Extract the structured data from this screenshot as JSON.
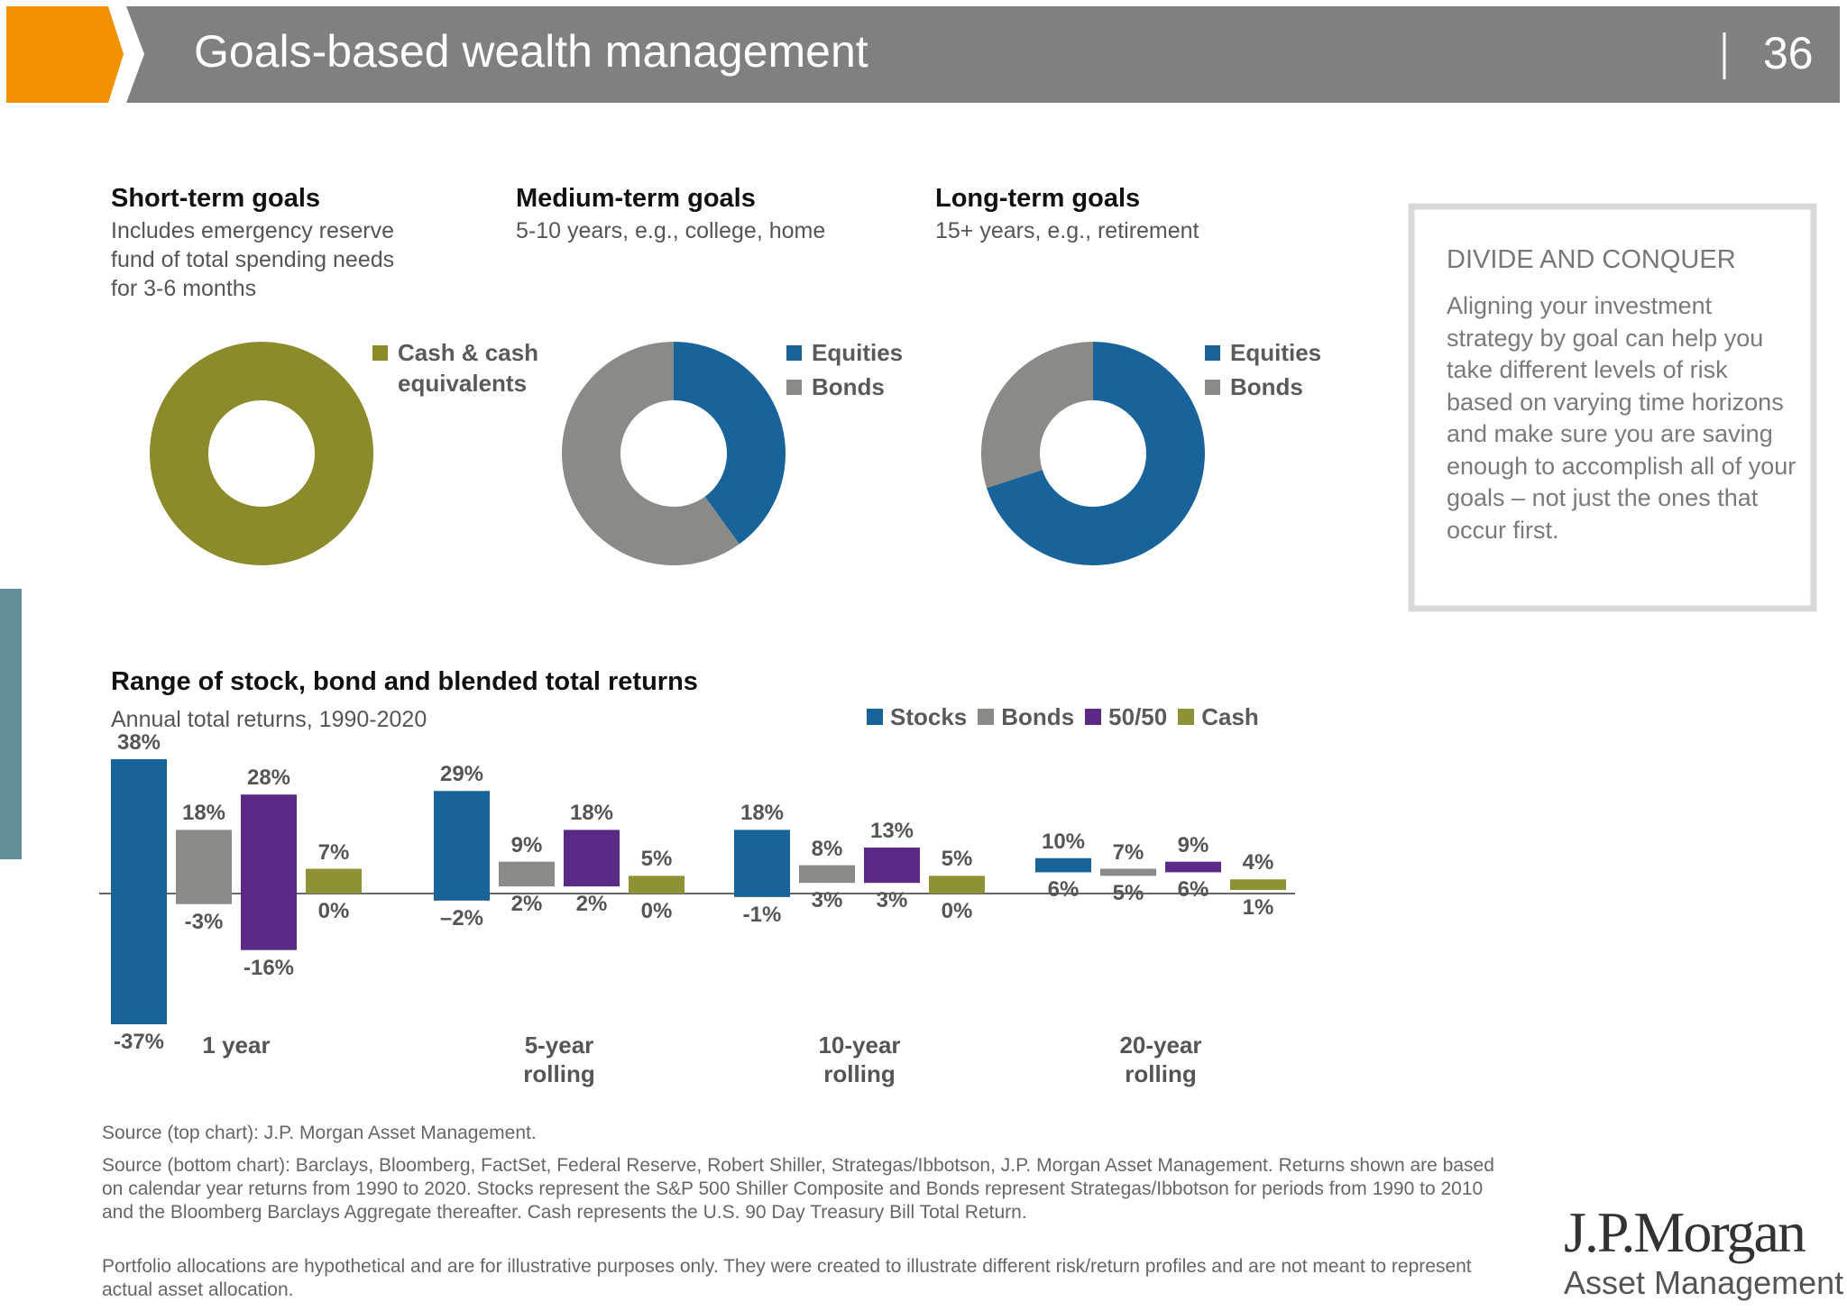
{
  "header": {
    "title": "Goals-based wealth management",
    "page_number": "36"
  },
  "chart_data": [
    {
      "type": "pie",
      "title": "Short-term goals",
      "subtitle": "Includes emergency reserve fund of total spending needs for 3-6 months",
      "categories": [
        "Cash & cash equivalents"
      ],
      "values": [
        100
      ],
      "colors": [
        "#8b8b2c"
      ]
    },
    {
      "type": "pie",
      "title": "Medium-term goals",
      "subtitle": "5-10 years, e.g., college, home",
      "categories": [
        "Equities",
        "Bonds"
      ],
      "values": [
        40,
        60
      ],
      "colors": [
        "#17639a",
        "#8a8a87"
      ]
    },
    {
      "type": "pie",
      "title": "Long-term goals",
      "subtitle": "15+ years, e.g., retirement",
      "categories": [
        "Equities",
        "Bonds"
      ],
      "values": [
        70,
        30
      ],
      "colors": [
        "#17639a",
        "#8a8a87"
      ]
    },
    {
      "type": "range-bar",
      "title": "Range of stock, bond and blended total returns",
      "subtitle": "Annual total returns, 1990-2020",
      "categories": [
        "1 year",
        "5-year rolling",
        "10-year rolling",
        "20-year rolling"
      ],
      "series": [
        {
          "name": "Stocks",
          "color": "#17639a",
          "values": [
            38,
            29,
            18,
            10
          ],
          "value_labels": [
            "38%",
            "29%",
            "18%",
            "10%"
          ],
          "low_values": [
            -37,
            -2,
            -1,
            6
          ],
          "low_value_labels": [
            "-37%",
            "–2%",
            "-1%",
            "6%"
          ]
        },
        {
          "name": "Bonds",
          "color": "#8a8a87",
          "values": [
            18,
            9,
            8,
            7
          ],
          "value_labels": [
            "18%",
            "9%",
            "8%",
            "7%"
          ],
          "low_values": [
            -3,
            2,
            3,
            5
          ],
          "low_value_labels": [
            "-3%",
            "2%",
            "3%",
            "5%"
          ]
        },
        {
          "name": "50/50",
          "color": "#5b2a86",
          "values": [
            28,
            18,
            13,
            9
          ],
          "value_labels": [
            "28%",
            "18%",
            "13%",
            "9%"
          ],
          "low_values": [
            -16,
            2,
            3,
            6
          ],
          "low_value_labels": [
            "-16%",
            "2%",
            "3%",
            "6%"
          ]
        },
        {
          "name": "Cash",
          "color": "#8d9234",
          "values": [
            7,
            5,
            5,
            4
          ],
          "value_labels": [
            "7%",
            "5%",
            "5%",
            "4%"
          ],
          "low_values": [
            0,
            0,
            0,
            1
          ],
          "low_value_labels": [
            "0%",
            "0%",
            "0%",
            "1%"
          ]
        }
      ]
    }
  ],
  "sidebar": {
    "title": "DIVIDE AND CONQUER",
    "text": "Aligning your investment strategy by goal can help you take different levels of risk based on varying time horizons and make sure you are saving enough to accomplish all of your goals – not just the ones that occur first."
  },
  "sources": [
    "Source (top chart): J.P. Morgan Asset Management.",
    "Source (bottom chart): Barclays, Bloomberg, FactSet, Federal Reserve, Robert Shiller, Strategas/Ibbotson, J.P. Morgan Asset Management. Returns shown are based on calendar year returns from 1990 to 2020. Stocks represent the S&P 500 Shiller Composite and Bonds represent Strategas/Ibbotson for periods from 1990 to 2010 and the Bloomberg Barclays Aggregate thereafter. Cash represents the U.S. 90 Day Treasury Bill Total Return.",
    "Portfolio allocations are hypothetical and are for illustrative purposes only. They were created to illustrate different risk/return profiles and are not meant to represent actual asset allocation."
  ],
  "logo": {
    "name": "J.P.Morgan",
    "subtitle": "Asset Management"
  }
}
